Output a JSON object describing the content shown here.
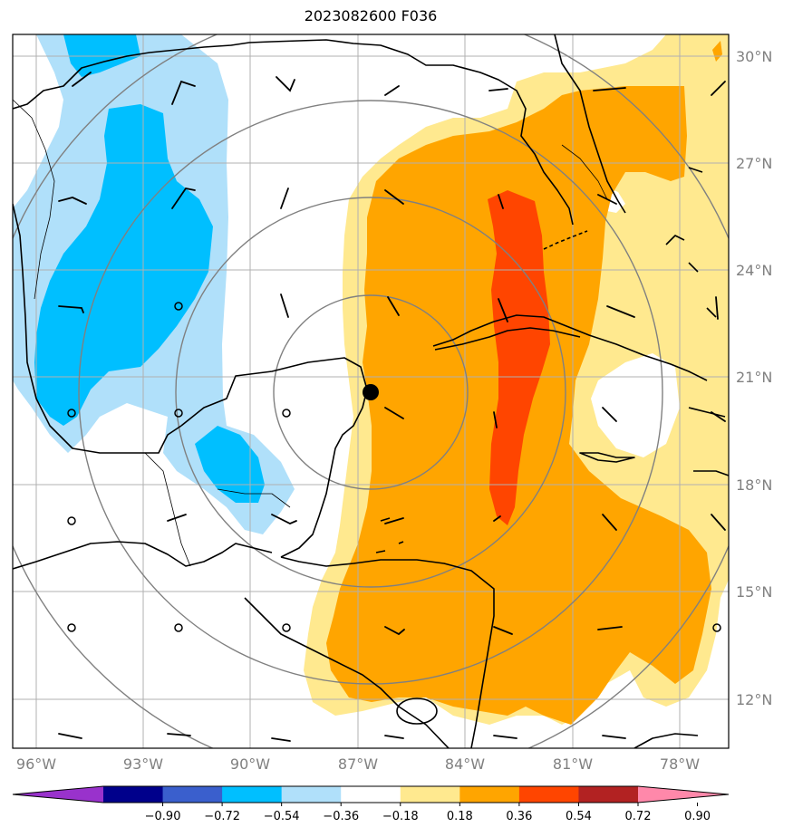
{
  "title": "2023082600 F036",
  "map": {
    "lat_labels": [
      "30°N",
      "27°N",
      "24°N",
      "21°N",
      "18°N",
      "15°N",
      "12°N"
    ],
    "lon_labels": [
      "96°W",
      "93°W",
      "90°W",
      "87°W",
      "84°W",
      "81°W",
      "78°W"
    ],
    "center_marker": "storm-center-dot"
  },
  "colorbar": {
    "ticks": [
      "−0.90",
      "−0.72",
      "−0.54",
      "−0.36",
      "−0.18",
      "0.18",
      "0.36",
      "0.54",
      "0.72",
      "0.90"
    ],
    "colors": [
      "#9932cc",
      "#00008b",
      "#3a5fcd",
      "#00bfff",
      "#b0e0fa",
      "#ffffff",
      "#ffe98f",
      "#ffa500",
      "#ff4500",
      "#b22222",
      "#ff88aa"
    ]
  }
}
